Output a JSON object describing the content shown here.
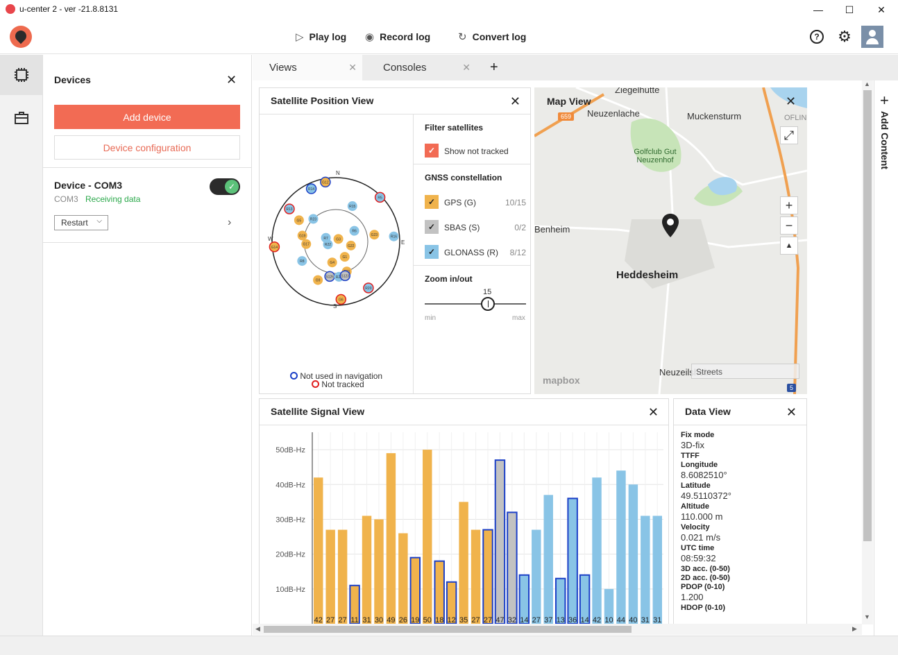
{
  "window": {
    "title": "u-center 2 - ver -21.8.8131",
    "minimize": "—",
    "maximize": "☐",
    "close": "✕"
  },
  "toolbar": {
    "play_log": "Play log",
    "record_log": "Record log",
    "convert_log": "Convert log",
    "help_icon": "?",
    "settings_icon": "⚙"
  },
  "devices_panel": {
    "title": "Devices",
    "add_device": "Add device",
    "device_configuration": "Device configuration",
    "device": {
      "name": "Device - COM3",
      "port": "COM3",
      "status": "Receiving data",
      "restart": "Restart",
      "connected": true
    }
  },
  "tabs": [
    {
      "label": "Views",
      "active": true
    },
    {
      "label": "Consoles",
      "active": false
    }
  ],
  "add_tab": "+",
  "satellite_position_view": {
    "title": "Satellite Position View",
    "filter_title": "Filter satellites",
    "show_not_tracked": "Show not tracked",
    "gnss_title": "GNSS constellation",
    "constellations": [
      {
        "label": "GPS (G)",
        "count": "10/15",
        "color": "#f0b34c"
      },
      {
        "label": "SBAS (S)",
        "count": "0/2",
        "color": "#c2c2c2"
      },
      {
        "label": "GLONASS (R)",
        "count": "8/12",
        "color": "#89c4e6"
      }
    ],
    "zoom_title": "Zoom in/out",
    "zoom_value": "15",
    "zoom_fraction": 0.62,
    "zoom_min": "min",
    "zoom_max": "max",
    "compass": {
      "n": "N",
      "e": "E",
      "s": "S",
      "w": "W"
    },
    "legend_not_used": "Not used in navigation",
    "legend_not_tracked": "Not tracked",
    "satellites": [
      {
        "id": "G12",
        "az": 350,
        "el": 5,
        "c": "gps",
        "ring": "blue"
      },
      {
        "id": "R14",
        "az": 335,
        "el": 8,
        "c": "glo",
        "ring": "blue"
      },
      {
        "id": "R13",
        "az": 305,
        "el": 10,
        "c": "glo",
        "ring": "red"
      },
      {
        "id": "R15",
        "az": 25,
        "el": 35,
        "c": "glo",
        "ring": "none"
      },
      {
        "id": "R5",
        "az": 45,
        "el": 2,
        "c": "glo",
        "ring": "red"
      },
      {
        "id": "G5",
        "az": 300,
        "el": 30,
        "c": "gps",
        "ring": "none"
      },
      {
        "id": "R23",
        "az": 315,
        "el": 45,
        "c": "glo",
        "ring": "none"
      },
      {
        "id": "R6",
        "az": 60,
        "el": 60,
        "c": "glo",
        "ring": "none"
      },
      {
        "id": "G23",
        "az": 80,
        "el": 35,
        "c": "gps",
        "ring": "none"
      },
      {
        "id": "R16",
        "az": 85,
        "el": 8,
        "c": "glo",
        "ring": "none"
      },
      {
        "id": "G19",
        "az": 280,
        "el": 42,
        "c": "gps",
        "ring": "none"
      },
      {
        "id": "G3",
        "az": 45,
        "el": 85,
        "c": "gps",
        "ring": "none"
      },
      {
        "id": "G22",
        "az": 105,
        "el": 68,
        "c": "gps",
        "ring": "none"
      },
      {
        "id": "R7",
        "az": 290,
        "el": 75,
        "c": "glo",
        "ring": "none"
      },
      {
        "id": "R22",
        "az": 250,
        "el": 78,
        "c": "glo",
        "ring": "none"
      },
      {
        "id": "G17",
        "az": 265,
        "el": 48,
        "c": "gps",
        "ring": "none"
      },
      {
        "id": "G14",
        "az": 265,
        "el": 3,
        "c": "gps",
        "ring": "red"
      },
      {
        "id": "R8",
        "az": 240,
        "el": 35,
        "c": "glo",
        "ring": "none"
      },
      {
        "id": "G1",
        "az": 150,
        "el": 65,
        "c": "gps",
        "ring": "none"
      },
      {
        "id": "G4",
        "az": 190,
        "el": 60,
        "c": "gps",
        "ring": "none"
      },
      {
        "id": "G21",
        "az": 160,
        "el": 45,
        "c": "gps",
        "ring": "none"
      },
      {
        "id": "S126",
        "az": 190,
        "el": 40,
        "c": "sbas",
        "ring": "blue"
      },
      {
        "id": "R21",
        "az": 175,
        "el": 40,
        "c": "glo",
        "ring": "none"
      },
      {
        "id": "S123",
        "az": 165,
        "el": 40,
        "c": "sbas",
        "ring": "blue"
      },
      {
        "id": "G9",
        "az": 205,
        "el": 30,
        "c": "gps",
        "ring": "none"
      },
      {
        "id": "R20",
        "az": 145,
        "el": 10,
        "c": "glo",
        "ring": "red"
      },
      {
        "id": "G6",
        "az": 175,
        "el": 8,
        "c": "gps",
        "ring": "red"
      }
    ]
  },
  "map_view": {
    "title": "Map View",
    "labels": [
      "Ziegelhütte",
      "Neuzenlache",
      "Muckensturm",
      "Golfclub Gut Neuzenhof",
      "Benheim",
      "Heddesheim",
      "Neuzeilsheim",
      "OFLIN"
    ],
    "road_label": "659",
    "road_label_2": "5",
    "style_select": "Streets",
    "attribution": "mapbox",
    "zoom_in": "+",
    "zoom_out": "−",
    "reset_north": "▲"
  },
  "satellite_signal_view": {
    "title": "Satellite Signal View"
  },
  "chart_data": {
    "type": "bar",
    "title": "",
    "xlabel": "",
    "ylabel": "",
    "ylim": [
      0,
      55
    ],
    "yticks": [
      "10dB-Hz",
      "20dB-Hz",
      "30dB-Hz",
      "40dB-Hz",
      "50dB-Hz"
    ],
    "ytick_values": [
      10,
      20,
      30,
      40,
      50
    ],
    "values": [
      42,
      27,
      27,
      11,
      31,
      30,
      49,
      26,
      19,
      50,
      18,
      12,
      35,
      27,
      27,
      47,
      32,
      14,
      27,
      37,
      13,
      36,
      14,
      42,
      10,
      44,
      40,
      31,
      31
    ],
    "colors": [
      "gps",
      "gps",
      "gps",
      "gps",
      "gps",
      "gps",
      "gps",
      "gps",
      "gps",
      "gps",
      "gps",
      "gps",
      "gps",
      "gps",
      "gps",
      "sbas",
      "sbas",
      "glo",
      "glo",
      "glo",
      "glo",
      "glo",
      "glo",
      "glo",
      "glo",
      "glo",
      "glo",
      "glo",
      "glo"
    ],
    "outlined": [
      false,
      false,
      false,
      true,
      false,
      false,
      false,
      false,
      true,
      false,
      true,
      true,
      false,
      false,
      true,
      true,
      true,
      true,
      false,
      false,
      true,
      true,
      true,
      false,
      false,
      false,
      false,
      false,
      false
    ],
    "palette": {
      "gps": "#f0b34c",
      "sbas": "#c2c2c2",
      "glo": "#89c4e6",
      "outline": "#1b3fc7"
    }
  },
  "data_view": {
    "title": "Data View",
    "fields": [
      {
        "label": "Fix mode",
        "value": "3D-fix"
      },
      {
        "label": "TTFF",
        "value": ""
      },
      {
        "label": "Longitude",
        "value": "8.6082510°"
      },
      {
        "label": "Latitude",
        "value": "49.5110372°"
      },
      {
        "label": "Altitude",
        "value": "110.000 m"
      },
      {
        "label": "Velocity",
        "value": "0.021 m/s"
      },
      {
        "label": "UTC time",
        "value": "08:59:32"
      },
      {
        "label": "3D acc. (0-50)",
        "value": ""
      },
      {
        "label": "2D acc. (0-50)",
        "value": ""
      },
      {
        "label": "PDOP (0-10)",
        "value": "1.200"
      },
      {
        "label": "HDOP (0-10)",
        "value": ""
      }
    ]
  },
  "add_content": "Add Content"
}
